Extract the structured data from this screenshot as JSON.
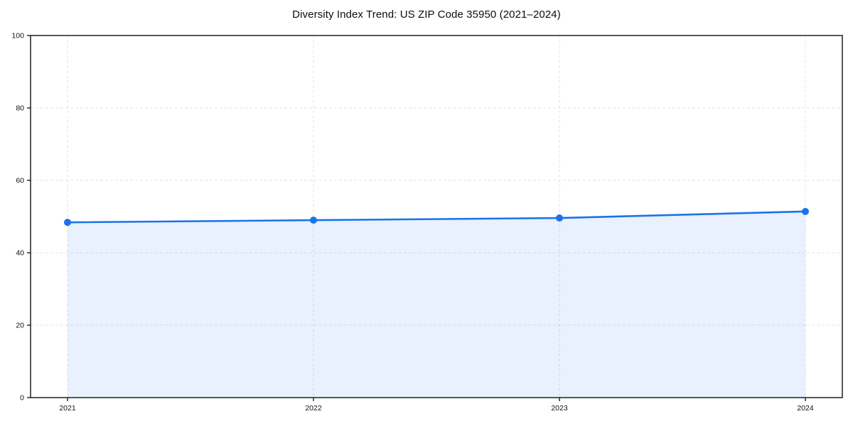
{
  "chart_data": {
    "type": "line",
    "title": "Diversity Index Trend: US ZIP Code 35950 (2021–2024)",
    "series": [
      {
        "name": "Diversity Index",
        "x": [
          2021,
          2022,
          2023,
          2024
        ],
        "values": [
          48.4,
          49.0,
          49.6,
          51.4
        ]
      }
    ],
    "xticks": [
      "2021",
      "2022",
      "2023",
      "2024"
    ],
    "yticks": [
      0,
      20,
      40,
      60,
      80,
      100
    ],
    "ylim": [
      0,
      100
    ],
    "xlabel": "",
    "ylabel": "",
    "grid": true,
    "legend_position": "none",
    "colors": {
      "line": "#1a73e8",
      "marker": "#1a73e8",
      "area_fill": "rgba(26,115,232,0.10)",
      "gridline": "#e3e3e3",
      "spine": "#111111",
      "tick_label": "#111111",
      "background": "#ffffff"
    }
  }
}
